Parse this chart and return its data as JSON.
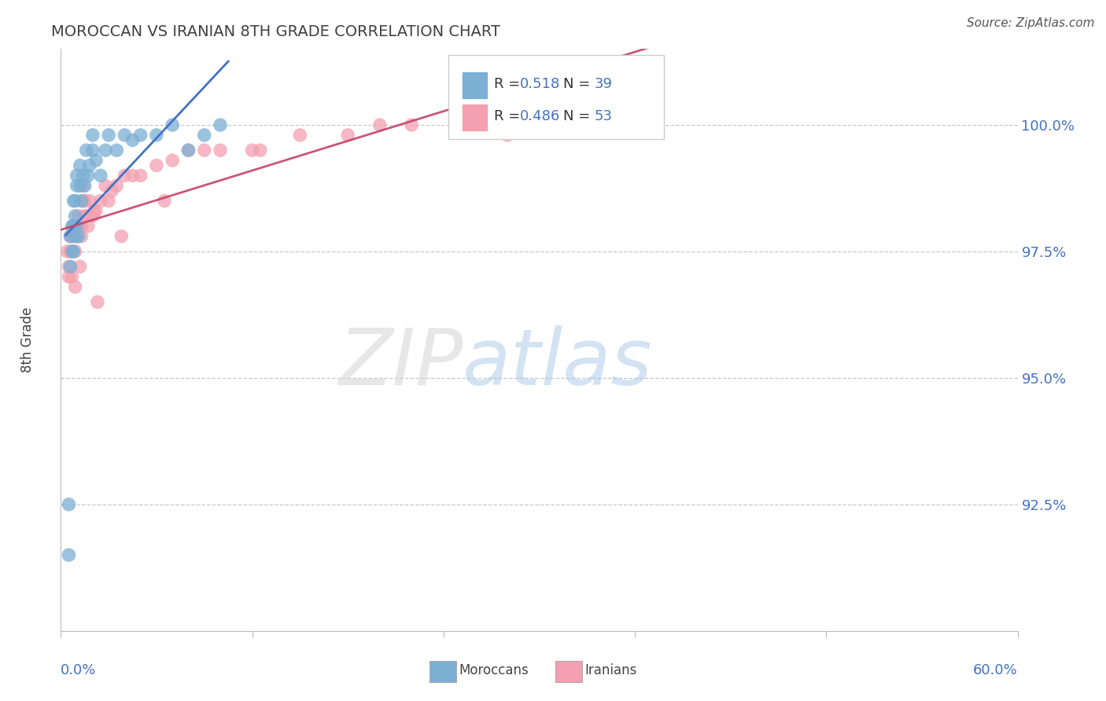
{
  "title": "MOROCCAN VS IRANIAN 8TH GRADE CORRELATION CHART",
  "source": "Source: ZipAtlas.com",
  "ylabel": "8th Grade",
  "y_tick_labels": [
    "92.5%",
    "95.0%",
    "97.5%",
    "100.0%"
  ],
  "y_tick_values": [
    92.5,
    95.0,
    97.5,
    100.0
  ],
  "xlim": [
    0.0,
    60.0
  ],
  "ylim": [
    90.0,
    101.5
  ],
  "legend_label1": "Moroccans",
  "legend_label2": "Iranians",
  "blue_color": "#7BAFD4",
  "pink_color": "#F4A0B0",
  "blue_line_color": "#4472C4",
  "pink_line_color": "#C4446A",
  "title_color": "#404040",
  "axis_label_color": "#4472C4",
  "watermark_zip": "ZIP",
  "watermark_atlas": "atlas",
  "moroccan_x": [
    0.5,
    0.5,
    0.6,
    0.7,
    0.8,
    0.8,
    0.9,
    0.9,
    1.0,
    1.0,
    1.1,
    1.2,
    1.2,
    1.3,
    1.4,
    1.5,
    1.6,
    1.7,
    1.8,
    2.0,
    2.0,
    2.2,
    2.5,
    2.8,
    3.0,
    3.5,
    4.0,
    4.5,
    5.0,
    6.0,
    7.0,
    8.0,
    9.0,
    10.0,
    0.6,
    0.7,
    0.8,
    0.9,
    1.0
  ],
  "moroccan_y": [
    91.5,
    92.5,
    97.8,
    98.0,
    97.5,
    98.5,
    97.8,
    98.2,
    98.0,
    99.0,
    97.8,
    98.8,
    99.2,
    98.5,
    99.0,
    98.8,
    99.5,
    99.0,
    99.2,
    99.5,
    99.8,
    99.3,
    99.0,
    99.5,
    99.8,
    99.5,
    99.8,
    99.7,
    99.8,
    99.8,
    100.0,
    99.5,
    99.8,
    100.0,
    97.2,
    97.5,
    98.0,
    98.5,
    98.8
  ],
  "iranian_x": [
    0.4,
    0.5,
    0.6,
    0.7,
    0.8,
    0.9,
    1.0,
    1.2,
    1.3,
    1.5,
    1.5,
    1.7,
    2.0,
    2.2,
    2.5,
    3.0,
    3.5,
    4.0,
    5.0,
    6.0,
    7.0,
    8.0,
    10.0,
    12.0,
    15.0,
    20.0,
    25.0,
    30.0,
    0.5,
    0.6,
    0.7,
    0.8,
    1.0,
    1.1,
    1.3,
    1.4,
    1.6,
    1.8,
    2.1,
    2.8,
    3.2,
    4.5,
    6.5,
    9.0,
    12.5,
    18.0,
    22.0,
    28.0,
    0.9,
    1.2,
    1.4,
    2.3,
    3.8
  ],
  "iranian_y": [
    97.5,
    97.2,
    97.8,
    97.0,
    98.0,
    97.5,
    97.8,
    98.0,
    97.8,
    98.2,
    98.5,
    98.0,
    98.2,
    98.3,
    98.5,
    98.5,
    98.8,
    99.0,
    99.0,
    99.2,
    99.3,
    99.5,
    99.5,
    99.5,
    99.8,
    100.0,
    100.0,
    100.2,
    97.0,
    97.5,
    97.8,
    98.0,
    97.8,
    98.2,
    98.0,
    98.5,
    98.2,
    98.5,
    98.3,
    98.8,
    98.7,
    99.0,
    98.5,
    99.5,
    99.5,
    99.8,
    100.0,
    99.8,
    96.8,
    97.2,
    98.8,
    96.5,
    97.8
  ]
}
